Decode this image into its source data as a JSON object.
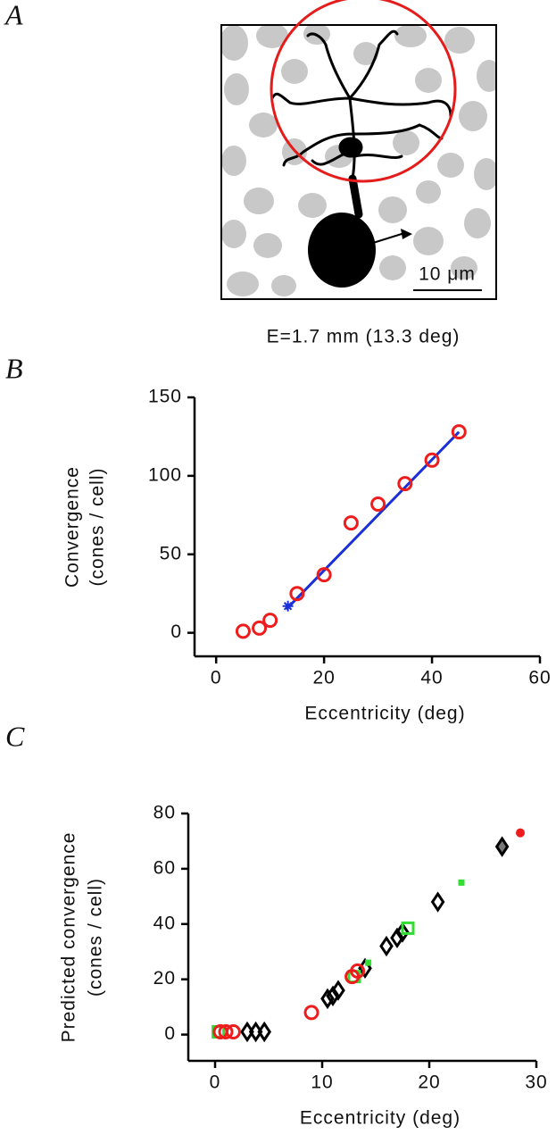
{
  "panel_a": {
    "label": "A",
    "scale_bar": "10 μm",
    "caption": "E=1.7 mm (13.3 deg)"
  },
  "chart_data": [
    {
      "type": "scatter",
      "panel_label": "B",
      "xlabel": "Eccentricity (deg)",
      "ylabel": [
        "Convergence",
        "(cones / cell)"
      ],
      "xlim": [
        -4,
        60
      ],
      "ylim": [
        -15,
        150
      ],
      "xticks": [
        0,
        20,
        40,
        60
      ],
      "yticks": [
        0,
        50,
        100,
        150
      ],
      "series": [
        {
          "kind": "line",
          "color": "#1a2fd6",
          "x": [
            13,
            45
          ],
          "values": [
            15,
            128
          ]
        },
        {
          "marker": "asterisk",
          "color": "#1a2fd6",
          "x": [
            13.3
          ],
          "values": [
            17
          ]
        },
        {
          "marker": "circle",
          "filled": false,
          "color": "#ee1c1c",
          "x": [
            5,
            8,
            10,
            15,
            20,
            25,
            30,
            35,
            40,
            45
          ],
          "values": [
            1,
            3,
            8,
            25,
            37,
            70,
            82,
            95,
            110,
            128
          ]
        }
      ]
    },
    {
      "type": "scatter",
      "panel_label": "C",
      "xlabel": "Eccentricity (deg)",
      "ylabel": [
        "Predicted convergence",
        "(cones / cell)"
      ],
      "xlim": [
        -2.5,
        30
      ],
      "ylim": [
        -9.5,
        80
      ],
      "xticks": [
        0,
        10,
        20,
        30
      ],
      "yticks": [
        0,
        20,
        40,
        60,
        80
      ],
      "series": [
        {
          "marker": "diamond",
          "filled": false,
          "color": "#000000",
          "x": [
            3,
            3.8,
            4.6,
            10.5,
            11,
            11.5,
            14,
            16,
            17,
            17.5,
            20.8
          ],
          "values": [
            1,
            1,
            1,
            13,
            14,
            16,
            24,
            32,
            35,
            37,
            48
          ]
        },
        {
          "marker": "diamond",
          "filled": true,
          "color": "#777777",
          "x": [
            26.8
          ],
          "values": [
            68
          ]
        },
        {
          "marker": "square",
          "filled": false,
          "color": "#33dd33",
          "x": [
            0.3,
            13,
            18
          ],
          "values": [
            1,
            21,
            38.5
          ]
        },
        {
          "marker": "small-square",
          "filled": true,
          "color": "#33dd33",
          "x": [
            14.3,
            23
          ],
          "values": [
            26,
            55
          ]
        },
        {
          "marker": "circle",
          "filled": false,
          "color": "#ee1c1c",
          "x": [
            0.5,
            1,
            1.7,
            9,
            12.8,
            13.3
          ],
          "values": [
            1,
            1,
            1,
            8,
            21,
            23
          ]
        },
        {
          "marker": "circle",
          "filled": true,
          "color": "#ee1c1c",
          "x": [
            28.5
          ],
          "values": [
            73
          ]
        }
      ]
    }
  ]
}
